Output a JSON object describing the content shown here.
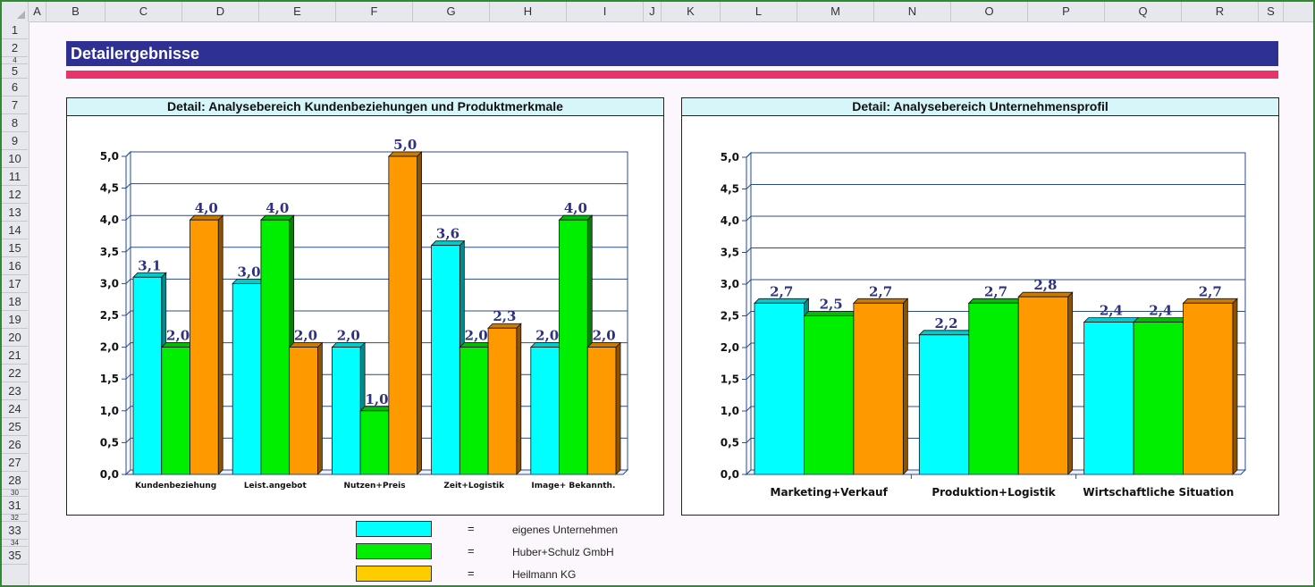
{
  "spreadsheet": {
    "columns": [
      "A",
      "B",
      "C",
      "D",
      "E",
      "F",
      "G",
      "H",
      "I",
      "J",
      "K",
      "L",
      "M",
      "N",
      "O",
      "P",
      "Q",
      "R",
      "S"
    ],
    "rows": [
      "1",
      "2",
      "4",
      "5",
      "6",
      "7",
      "8",
      "9",
      "10",
      "11",
      "12",
      "13",
      "14",
      "15",
      "16",
      "17",
      "18",
      "19",
      "20",
      "21",
      "22",
      "23",
      "24",
      "25",
      "26",
      "27",
      "28",
      "30",
      "31",
      "32",
      "33",
      "34",
      "35"
    ]
  },
  "header": {
    "title": "Detailergebnisse",
    "title_bg": "#2e3192",
    "accent": "#e8336d"
  },
  "chart_data": [
    {
      "type": "bar",
      "title": "Detail: Analysebereich Kundenbeziehungen und Produktmerkmale",
      "categories": [
        "Kundenbeziehung",
        "Leist.angebot",
        "Nutzen+Preis",
        "Zeit+Logistik",
        "Image+ Bekannth."
      ],
      "series": [
        {
          "values": [
            3.1,
            3.0,
            2.0,
            3.6,
            2.0
          ],
          "labels": [
            "3,1",
            "3,0",
            "2,0",
            "3,6",
            "2,0"
          ],
          "color": "#00ffff"
        },
        {
          "values": [
            2.0,
            4.0,
            1.0,
            2.0,
            4.0
          ],
          "labels": [
            "2,0",
            "4,0",
            "1,0",
            "2,0",
            "4,0"
          ],
          "color": "#00ee00"
        },
        {
          "values": [
            4.0,
            2.0,
            5.0,
            2.3,
            2.0
          ],
          "labels": [
            "4,0",
            "2,0",
            "5,0",
            "2,3",
            "2,0"
          ],
          "color": "#ff9900"
        }
      ],
      "yticks": [
        "0,0",
        "0,5",
        "1,0",
        "1,5",
        "2,0",
        "2,5",
        "3,0",
        "3,5",
        "4,0",
        "4,5",
        "5,0"
      ],
      "ylim": [
        0,
        5
      ],
      "grid": true
    },
    {
      "type": "bar",
      "title": "Detail: Analysebereich Unternehmensprofil",
      "categories": [
        "Marketing+Verkauf",
        "Produktion+Logistik",
        "Wirtschaftliche Situation"
      ],
      "series": [
        {
          "values": [
            2.7,
            2.2,
            2.4
          ],
          "labels": [
            "2,7",
            "2,2",
            "2,4"
          ],
          "color": "#00ffff"
        },
        {
          "values": [
            2.5,
            2.7,
            2.4
          ],
          "labels": [
            "2,5",
            "2,7",
            "2,4"
          ],
          "color": "#00ee00"
        },
        {
          "values": [
            2.7,
            2.8,
            2.7
          ],
          "labels": [
            "2,7",
            "2,8",
            "2,7"
          ],
          "color": "#ff9900"
        }
      ],
      "yticks": [
        "0,0",
        "0,5",
        "1,0",
        "1,5",
        "2,0",
        "2,5",
        "3,0",
        "3,5",
        "4,0",
        "4,5",
        "5,0"
      ],
      "ylim": [
        0,
        5
      ],
      "grid": true
    }
  ],
  "legend": {
    "eq": "=",
    "items": [
      {
        "label": "eigenes Unternehmen",
        "color": "#00ffff"
      },
      {
        "label": "Huber+Schulz GmbH",
        "color": "#00ee00"
      },
      {
        "label": "Heilmann KG",
        "color": "#ffcc00"
      }
    ]
  }
}
